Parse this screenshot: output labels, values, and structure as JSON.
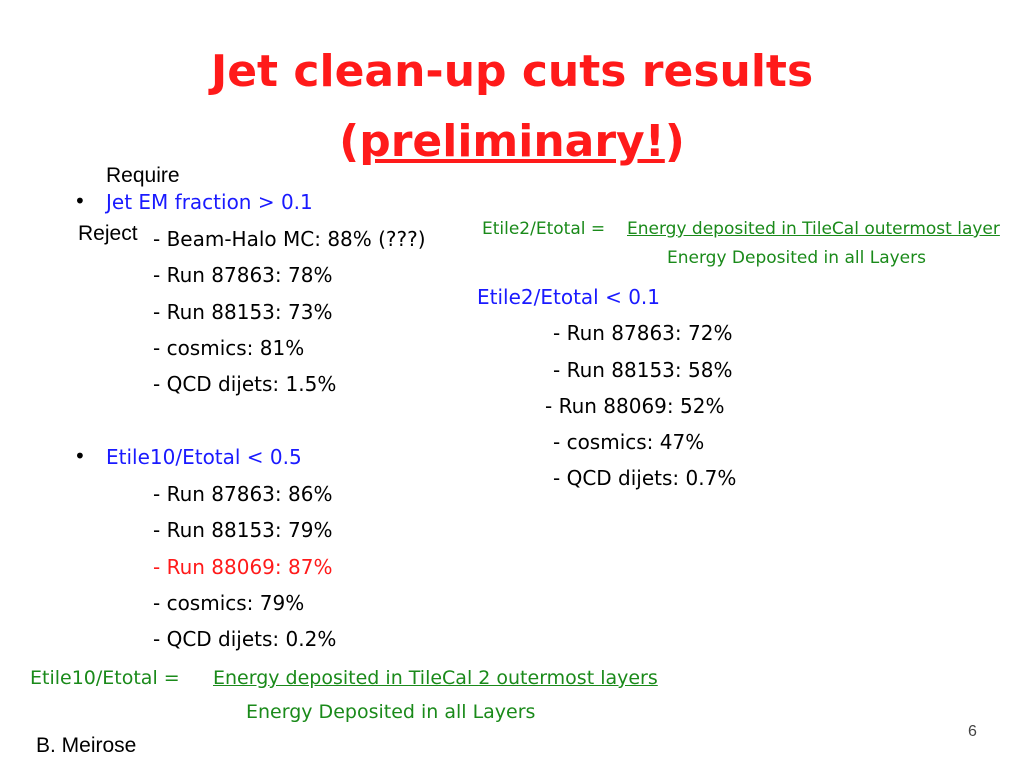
{
  "slide": {
    "title_line1": "Jet clean-up cuts results",
    "title_paren_open": "(",
    "title_underlined": "preliminary!",
    "title_paren_close": ")",
    "author": "B. Meirose",
    "page_number": "6"
  },
  "left": {
    "require_label": "Require",
    "reject_label": "Reject",
    "bullet_symbol": "•",
    "cut1": {
      "heading": "Jet EM fraction > 0.1",
      "items": [
        "- Beam-Halo MC: 88%  (???)",
        "- Run 87863: 78%",
        "- Run 88153: 73%",
        "- cosmics: 81%",
        "- QCD dijets: 1.5%"
      ]
    },
    "cut2": {
      "heading": "Etile10/Etotal < 0.5",
      "items": [
        "- Run 87863: 86%",
        "- Run 88153: 79%",
        "- Run 88069: 87%",
        "- cosmics: 79%",
        "- QCD dijets: 0.2%"
      ]
    },
    "formula": {
      "lhs": "Etile10/Etotal =",
      "numerator": "Energy deposited in TileCal 2 outermost layers",
      "denominator": "Energy Deposited in all Layers"
    }
  },
  "right": {
    "formula": {
      "lhs": "Etile2/Etotal =",
      "numerator": "Energy deposited in TileCal outermost layer",
      "denominator": "Energy Deposited in all Layers"
    },
    "cut": {
      "heading": "Etile2/Etotal < 0.1",
      "items": [
        "- Run 87863: 72%",
        "- Run 88153: 58%",
        "-  Run 88069: 52%",
        "- cosmics: 47%",
        "- QCD dijets: 0.7%"
      ]
    }
  },
  "colors": {
    "title": "#ff1a1a",
    "heading": "#1a1aff",
    "formula": "#1a8a1a",
    "highlight": "#ff1a1a"
  }
}
